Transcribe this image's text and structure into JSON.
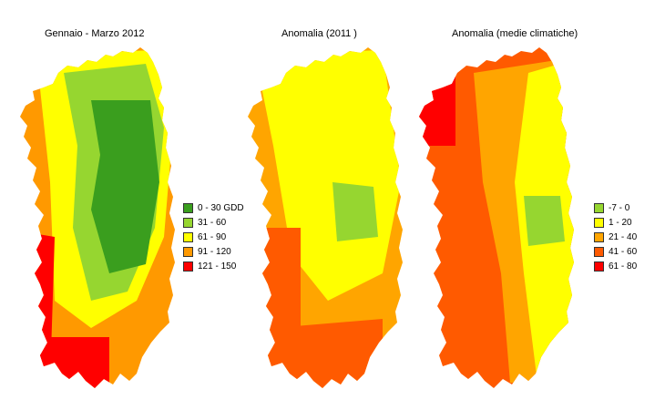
{
  "maps": [
    {
      "title": "Gennaio - Marzo 2012",
      "legend": [
        {
          "label": "0 - 30 GDD",
          "color": "#3a9e1e"
        },
        {
          "label": "31 - 60",
          "color": "#96d630"
        },
        {
          "label": "61 - 90",
          "color": "#ffff00"
        },
        {
          "label": "91 - 120",
          "color": "#ff9900"
        },
        {
          "label": "121 - 150",
          "color": "#ff0000"
        }
      ]
    },
    {
      "title": "Anomalia (2011 )"
    },
    {
      "title": "Anomalia (medie climatiche)",
      "legend": [
        {
          "label": "-7 - 0",
          "color": "#96d630"
        },
        {
          "label": "1 - 20",
          "color": "#ffff00"
        },
        {
          "label": "21 - 40",
          "color": "#ffa500"
        },
        {
          "label": "41 - 60",
          "color": "#ff5a00"
        },
        {
          "label": "61 - 80",
          "color": "#ff0000"
        }
      ]
    }
  ]
}
